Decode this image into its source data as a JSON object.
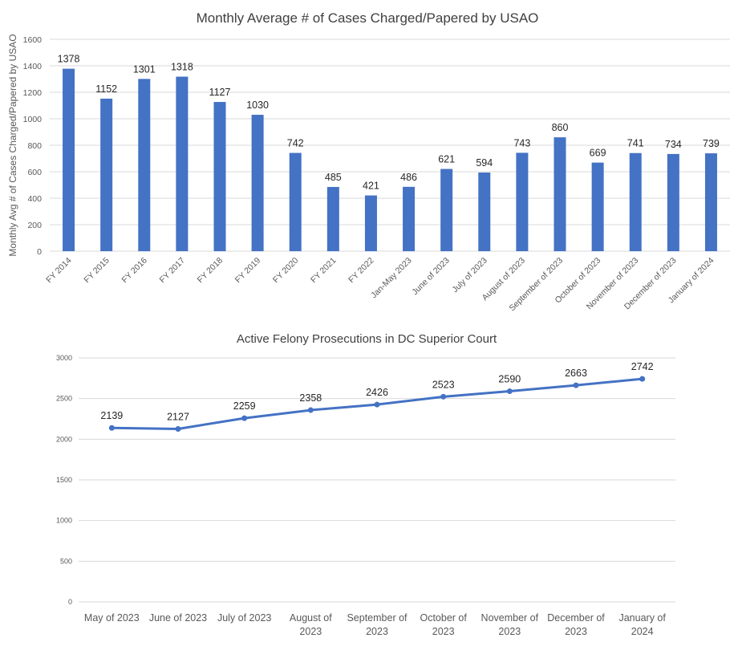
{
  "chart_data": [
    {
      "type": "bar",
      "title": "Monthly Average # of Cases Charged/Papered by USAO",
      "xlabel": "",
      "ylabel": "Monthly Avg # of Cases Charged/Papered by USAO",
      "ylim": [
        0,
        1600
      ],
      "yticks": [
        0,
        200,
        400,
        600,
        800,
        1000,
        1200,
        1400,
        1600
      ],
      "grid": true,
      "legend": "none",
      "color": "#4472C4",
      "categories": [
        "FY 2014",
        "FY 2015",
        "FY 2016",
        "FY 2017",
        "FY 2018",
        "FY 2019",
        "FY 2020",
        "FY 2021",
        "FY 2022",
        "Jan-May 2023",
        "June of 2023",
        "July of 2023",
        "August of 2023",
        "September of 2023",
        "October of 2023",
        "November of 2023",
        "December of 2023",
        "January of 2024"
      ],
      "values": [
        1378,
        1152,
        1301,
        1318,
        1127,
        1030,
        742,
        485,
        421,
        486,
        621,
        594,
        743,
        860,
        669,
        741,
        734,
        739
      ]
    },
    {
      "type": "line",
      "title": "Active Felony Prosecutions in DC Superior Court",
      "xlabel": "",
      "ylabel": "",
      "ylim": [
        0,
        3000
      ],
      "yticks": [
        0,
        500,
        1000,
        1500,
        2000,
        2500,
        3000
      ],
      "grid": true,
      "legend": "none",
      "color": "#4472C4",
      "categories": [
        [
          "May of 2023"
        ],
        [
          "June of 2023"
        ],
        [
          "July of 2023"
        ],
        [
          "August of",
          "2023"
        ],
        [
          "September of",
          "2023"
        ],
        [
          "October of",
          "2023"
        ],
        [
          "November of",
          "2023"
        ],
        [
          "December of",
          "2023"
        ],
        [
          "January of",
          "2024"
        ]
      ],
      "values": [
        2139,
        2127,
        2259,
        2358,
        2426,
        2523,
        2590,
        2663,
        2742
      ]
    }
  ]
}
